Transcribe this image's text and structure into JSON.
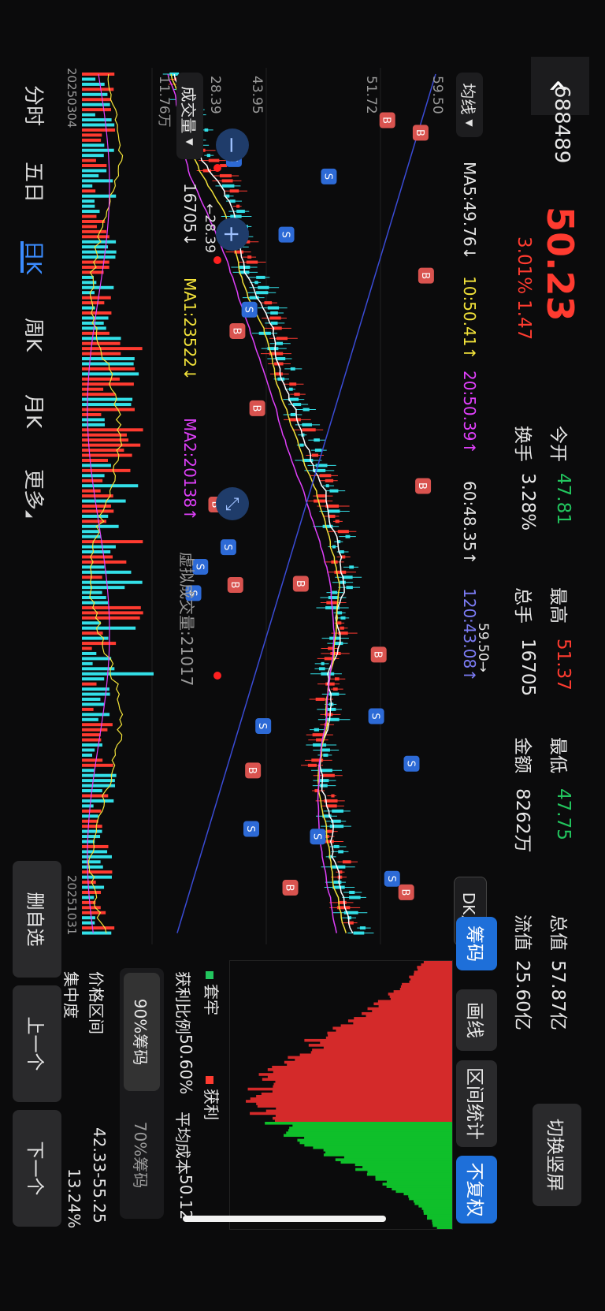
{
  "header": {
    "code": "688489",
    "price": "50.23",
    "change": "1.47",
    "change_pct": "3.01%",
    "open_label": "今开",
    "open_value": "47.81",
    "high_label": "最高",
    "high_value": "51.37",
    "low_label": "最低",
    "low_value": "47.75",
    "total_label": "总值",
    "total_value": "57.87亿",
    "turnover_label": "换手",
    "turnover_value": "3.28%",
    "hands_label": "总手",
    "hands_value": "16705",
    "amount_label": "金额",
    "amount_value": "8262万",
    "float_label": "流值",
    "float_value": "25.60亿",
    "switch_label": "切换竖屏"
  },
  "ma_bar": {
    "selector": "均线",
    "ma5": "MA5:49.76↓",
    "ma10": "10:50.41↑",
    "ma20": "20:50.39↑",
    "ma60": "60:48.35↑",
    "ma120": "120:43.08↑",
    "dk": "DK点"
  },
  "price_axis": {
    "top": "59.50",
    "mid1": "51.72",
    "mid2": "43.95",
    "low": "28.39"
  },
  "chart_marks": {
    "high_tag": "59.50",
    "low_tag": "28.39"
  },
  "volume_bar": {
    "selector": "成交量",
    "value": "16705↓",
    "ma1": "MA1:23522↓",
    "ma2": "MA2:20138↑",
    "virtual": "虚拟成交量:21017",
    "axis_top": "11.76万"
  },
  "dates": {
    "start": "20250304",
    "end": "20251031"
  },
  "chip_tabs": {
    "chip": "筹码",
    "draw": "画线",
    "range": "区间统计",
    "adj": "不复权"
  },
  "chip_panel": {
    "trapped": "套牢",
    "profit": "获利",
    "profit_ratio_label": "获利比例",
    "profit_ratio": "50.60%",
    "avg_cost_label": "平均成本",
    "avg_cost": "50.12",
    "tab90": "90%筹码",
    "tab70": "70%筹码",
    "price_range_label": "价格区间",
    "price_range": "42.33-55.25",
    "concentration_label": "集中度",
    "concentration": "13.24%"
  },
  "period_tabs": [
    "分时",
    "五日",
    "日K",
    "周K",
    "月K",
    "更多"
  ],
  "bottom_buttons": {
    "delete": "删自选",
    "prev": "上一个",
    "next": "下一个"
  },
  "colors": {
    "up": "#ff3b30",
    "down": "#22c55e",
    "cyan": "#33e0e8",
    "ma5": "#ffffff",
    "ma10": "#f3e33a",
    "ma20": "#e040fb",
    "ma120": "#3a4bd6",
    "accent": "#1e6fd9"
  }
}
